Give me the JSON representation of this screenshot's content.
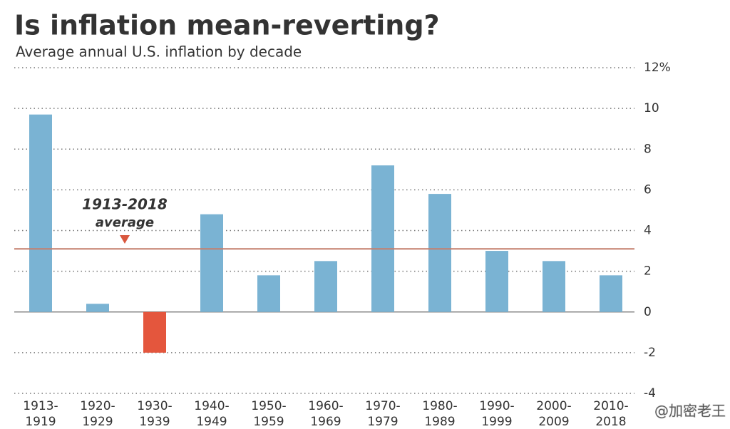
{
  "chart_data": {
    "type": "bar",
    "title": "Is inflation mean-reverting?",
    "subtitle": "Average annual U.S. inflation by decade",
    "categories": [
      "1913-1919",
      "1920-1929",
      "1930-1939",
      "1940-1949",
      "1950-1959",
      "1960-1969",
      "1970-1979",
      "1980-1989",
      "1990-1999",
      "2000-2009",
      "2010-2018"
    ],
    "values": [
      9.7,
      0.4,
      -2.0,
      4.8,
      1.8,
      2.5,
      7.2,
      5.8,
      3.0,
      2.5,
      1.8
    ],
    "colors": [
      "#7ab3d3",
      "#7ab3d3",
      "#e4563d",
      "#7ab3d3",
      "#7ab3d3",
      "#7ab3d3",
      "#7ab3d3",
      "#7ab3d3",
      "#7ab3d3",
      "#7ab3d3",
      "#7ab3d3"
    ],
    "ylim": [
      -4,
      12
    ],
    "yticks": [
      -4,
      -2,
      0,
      2,
      4,
      6,
      8,
      10,
      {
        "value": 12,
        "label": "12%"
      }
    ],
    "grid": true,
    "average_line": {
      "value": 3.1,
      "color": "#c47f6c",
      "text": [
        "1913-2018",
        "average"
      ]
    },
    "watermark": "@加密老王"
  }
}
